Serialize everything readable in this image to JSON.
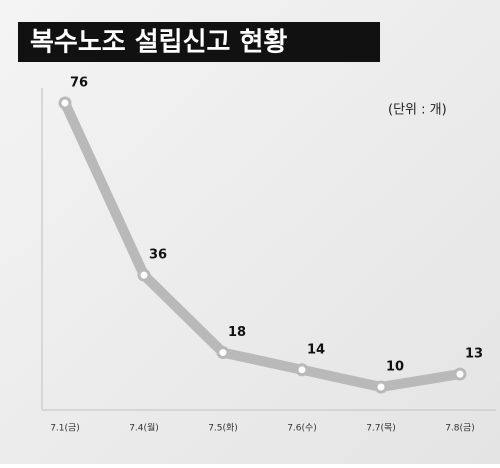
{
  "chart_data": {
    "type": "line",
    "title": "복수노조 설립신고 현황",
    "unit_note": "(단위 : 개)",
    "categories": [
      "7.1(금)",
      "7.4(월)",
      "7.5(화)",
      "7.6(수)",
      "7.7(목)",
      "7.8(금)"
    ],
    "values": [
      76,
      36,
      18,
      14,
      10,
      13
    ],
    "color": "#b9b9b9"
  }
}
